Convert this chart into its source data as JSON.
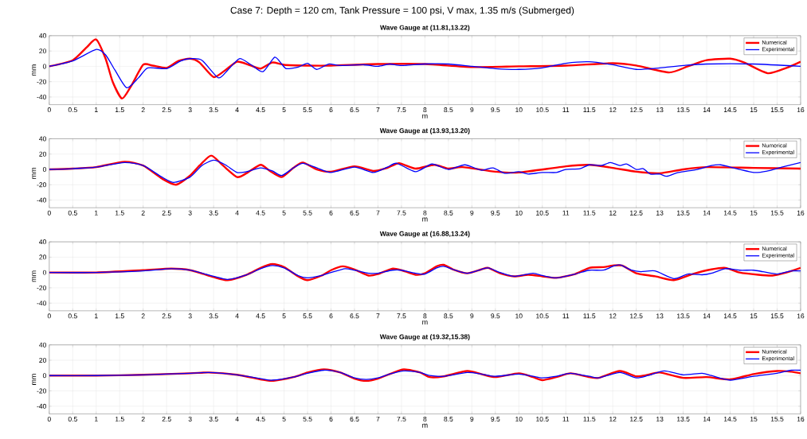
{
  "chart_data": [
    {
      "type": "line",
      "title": "Wave Gauge at (11.81,13.22)",
      "xlabel": "m",
      "ylabel": "mm",
      "annotations": [
        "Case 7: Depth = 120 cm, Tank Pressure = 100 psi, V max, 1.35 m/s (Submerged)"
      ],
      "xlim": [
        0,
        16
      ],
      "ylim": [
        -50,
        40
      ],
      "xticks": [
        0,
        0.5,
        1,
        1.5,
        2,
        2.5,
        3,
        3.5,
        4,
        4.5,
        5,
        5.5,
        6,
        6.5,
        7,
        7.5,
        8,
        8.5,
        9,
        9.5,
        10,
        10.5,
        11,
        11.5,
        12,
        12.5,
        13,
        13.5,
        14,
        14.5,
        15,
        15.5,
        16
      ],
      "yticks": [
        -40,
        -20,
        0,
        20,
        40
      ],
      "grid": true,
      "legend": "top right",
      "line_style": "solid",
      "series": [
        {
          "name": "Numerical",
          "color": "#ff0000",
          "x": [
            0,
            0.5,
            0.8,
            1.0,
            1.2,
            1.35,
            1.55,
            1.75,
            2.0,
            2.2,
            2.5,
            2.75,
            3.0,
            3.2,
            3.5,
            3.75,
            4.0,
            4.25,
            4.5,
            4.75,
            5.0,
            5.5,
            6,
            7,
            8,
            9,
            10,
            11,
            12,
            12.5,
            13.2,
            13.6,
            14,
            14.5,
            14.8,
            15.3,
            15.7,
            16
          ],
          "values": [
            0,
            8,
            25,
            35,
            10,
            -20,
            -42,
            -25,
            2,
            1,
            -2,
            7,
            10,
            5,
            -14,
            -5,
            6,
            2,
            -3,
            5,
            2,
            1,
            1,
            3,
            3,
            -1,
            0,
            1,
            4,
            1,
            -8,
            0,
            8,
            10,
            5,
            -9,
            -2,
            6
          ]
        },
        {
          "name": "Experimental",
          "color": "#0000ff",
          "x": [
            0,
            0.5,
            1.0,
            1.2,
            1.4,
            1.65,
            1.9,
            2.1,
            2.5,
            2.8,
            3.0,
            3.25,
            3.6,
            3.8,
            4.05,
            4.3,
            4.55,
            4.8,
            4.95,
            5.05,
            5.3,
            5.5,
            5.7,
            5.95,
            6.2,
            6.7,
            7,
            7.25,
            7.5,
            8,
            8.5,
            9,
            9.5,
            10,
            10.5,
            11,
            11.5,
            12,
            12.5,
            13,
            13.5,
            14,
            15,
            16
          ],
          "values": [
            0,
            7,
            22,
            15,
            -5,
            -28,
            -15,
            -2,
            -3,
            7,
            10,
            8,
            -15,
            -5,
            10,
            2,
            -7,
            12,
            3,
            -3,
            -1,
            4,
            -4,
            3,
            1,
            2,
            0,
            3,
            1,
            3,
            3,
            0,
            -3,
            -4,
            -2,
            4,
            6,
            2,
            -4,
            -2,
            1,
            3,
            3,
            0
          ]
        }
      ]
    },
    {
      "type": "line",
      "title": "Wave Gauge at (13.93,13.20)",
      "xlabel": "m",
      "ylabel": "mm",
      "xlim": [
        0,
        16
      ],
      "ylim": [
        -50,
        40
      ],
      "xticks": [
        0,
        0.5,
        1,
        1.5,
        2,
        2.5,
        3,
        3.5,
        4,
        4.5,
        5,
        5.5,
        6,
        6.5,
        7,
        7.5,
        8,
        8.5,
        9,
        9.5,
        10,
        10.5,
        11,
        11.5,
        12,
        12.5,
        13,
        13.5,
        14,
        14.5,
        15,
        15.5,
        16
      ],
      "yticks": [
        -40,
        -20,
        0,
        20,
        40
      ],
      "grid": true,
      "legend": "top right",
      "line_style": "solid",
      "series": [
        {
          "name": "Numerical",
          "color": "#ff0000",
          "x": [
            0,
            0.5,
            1,
            1.6,
            2.0,
            2.4,
            2.7,
            3.0,
            3.2,
            3.45,
            3.7,
            4.0,
            4.2,
            4.5,
            4.7,
            4.95,
            5.2,
            5.4,
            5.7,
            6.0,
            6.5,
            6.9,
            7.2,
            7.45,
            7.8,
            8.2,
            8.5,
            8.8,
            9.5,
            10,
            11,
            11.5,
            12,
            12.5,
            13,
            13.5,
            14,
            15,
            16
          ],
          "values": [
            0,
            1,
            3,
            10,
            5,
            -12,
            -20,
            -8,
            5,
            18,
            5,
            -10,
            -5,
            6,
            -2,
            -10,
            2,
            9,
            0,
            -3,
            4,
            -2,
            2,
            8,
            1,
            6,
            1,
            3,
            -3,
            -4,
            4,
            6,
            2,
            -3,
            -5,
            0,
            3,
            2,
            1
          ]
        },
        {
          "name": "Experimental",
          "color": "#0000ff",
          "x": [
            0,
            0.5,
            1,
            1.6,
            2.0,
            2.4,
            2.65,
            3.0,
            3.25,
            3.5,
            3.75,
            4.0,
            4.2,
            4.5,
            4.75,
            4.95,
            5.2,
            5.4,
            5.7,
            6.0,
            6.5,
            6.9,
            7.2,
            7.4,
            7.8,
            8.15,
            8.5,
            8.85,
            9.2,
            9.45,
            9.7,
            10,
            10.2,
            10.5,
            10.8,
            11,
            11.3,
            11.5,
            11.75,
            11.95,
            12.15,
            12.3,
            12.5,
            12.65,
            12.8,
            13.0,
            13.15,
            13.4,
            13.8,
            14.1,
            14.3,
            14.5,
            15.0,
            15.3,
            15.6,
            16
          ],
          "values": [
            0,
            1,
            3,
            9,
            5,
            -10,
            -17,
            -10,
            5,
            12,
            6,
            -4,
            -3,
            2,
            -2,
            -8,
            2,
            8,
            2,
            -4,
            3,
            -4,
            3,
            8,
            -3,
            7,
            0,
            6,
            -1,
            2,
            -5,
            -3,
            -6,
            -4,
            -4,
            0,
            1,
            6,
            5,
            9,
            5,
            7,
            0,
            1,
            -6,
            -6,
            -9,
            -4,
            0,
            5,
            6,
            3,
            -4,
            -2,
            3,
            9
          ]
        }
      ]
    },
    {
      "type": "line",
      "title": "Wave Gauge at (16.88,13.24)",
      "xlabel": "m",
      "ylabel": "mm",
      "xlim": [
        0,
        16
      ],
      "ylim": [
        -50,
        40
      ],
      "xticks": [
        0,
        0.5,
        1,
        1.5,
        2,
        2.5,
        3,
        3.5,
        4,
        4.5,
        5,
        5.5,
        6,
        6.5,
        7,
        7.5,
        8,
        8.5,
        9,
        9.5,
        10,
        10.5,
        11,
        11.5,
        12,
        12.5,
        13,
        13.5,
        14,
        14.5,
        15,
        15.5,
        16
      ],
      "yticks": [
        -40,
        -20,
        0,
        20,
        40
      ],
      "grid": true,
      "legend": "top right",
      "line_style": "solid",
      "series": [
        {
          "name": "Numerical",
          "color": "#ff0000",
          "x": [
            0,
            1,
            2,
            2.6,
            3.0,
            3.5,
            3.8,
            4.2,
            4.5,
            4.75,
            5.0,
            5.3,
            5.5,
            5.8,
            6.0,
            6.25,
            6.5,
            6.8,
            7.0,
            7.3,
            7.5,
            7.8,
            8.0,
            8.25,
            8.4,
            8.6,
            8.9,
            9.2,
            9.35,
            9.6,
            9.9,
            10.2,
            10.5,
            10.8,
            11.2,
            11.5,
            11.8,
            12.0,
            12.2,
            12.5,
            12.9,
            13.3,
            13.7,
            14.1,
            14.4,
            14.7,
            15.1,
            15.4,
            15.7,
            16
          ],
          "values": [
            0,
            0,
            3,
            5,
            3,
            -6,
            -10,
            -3,
            6,
            11,
            7,
            -5,
            -10,
            -4,
            3,
            8,
            4,
            -4,
            -2,
            5,
            3,
            -3,
            -1,
            8,
            10,
            4,
            -1,
            4,
            6,
            -1,
            -5,
            -3,
            -5,
            -7,
            -2,
            6,
            7,
            9,
            9,
            -1,
            -5,
            -10,
            -2,
            4,
            6,
            0,
            -3,
            -4,
            0,
            6
          ]
        },
        {
          "name": "Experimental",
          "color": "#0000ff",
          "x": [
            0,
            1,
            2,
            2.6,
            3.0,
            3.5,
            3.8,
            4.2,
            4.5,
            4.75,
            5.0,
            5.3,
            5.5,
            5.8,
            6.0,
            6.3,
            6.5,
            6.8,
            7.0,
            7.3,
            7.5,
            7.8,
            8.0,
            8.25,
            8.4,
            8.6,
            8.9,
            9.2,
            9.35,
            9.6,
            9.9,
            10.3,
            10.5,
            10.8,
            11.2,
            11.5,
            11.8,
            12.0,
            12.15,
            12.4,
            12.6,
            12.9,
            13.3,
            13.6,
            13.9,
            14.1,
            14.4,
            14.7,
            15.0,
            15.2,
            15.5,
            15.8,
            16
          ],
          "values": [
            0,
            0,
            2,
            5,
            3,
            -5,
            -9,
            -3,
            5,
            9,
            6,
            -4,
            -7,
            -4,
            0,
            5,
            3,
            -1,
            -1,
            3,
            3,
            -1,
            -2,
            6,
            8,
            4,
            -1,
            4,
            6,
            0,
            -5,
            -1,
            -4,
            -7,
            -2,
            3,
            3,
            8,
            10,
            3,
            1,
            2,
            -8,
            -2,
            -3,
            -1,
            5,
            3,
            3,
            1,
            -2,
            2,
            2
          ]
        }
      ]
    },
    {
      "type": "line",
      "title": "Wave Gauge at (19.32,15.38)",
      "xlabel": "m",
      "ylabel": "mm",
      "xlim": [
        0,
        16
      ],
      "ylim": [
        -50,
        40
      ],
      "xticks": [
        0,
        0.5,
        1,
        1.5,
        2,
        2.5,
        3,
        3.5,
        4,
        4.5,
        5,
        5.5,
        6,
        6.5,
        7,
        7.5,
        8,
        8.5,
        9,
        9.5,
        10,
        10.5,
        11,
        11.5,
        12,
        12.5,
        13,
        13.5,
        14,
        14.5,
        15,
        15.5,
        16
      ],
      "yticks": [
        -40,
        -20,
        0,
        20,
        40
      ],
      "grid": true,
      "legend": "top right",
      "line_style": "solid",
      "series": [
        {
          "name": "Numerical",
          "color": "#ff0000",
          "x": [
            0,
            1,
            2,
            3,
            3.4,
            4,
            4.5,
            4.75,
            5.2,
            5.5,
            5.85,
            6.2,
            6.5,
            6.75,
            7.0,
            7.25,
            7.55,
            7.9,
            8.1,
            8.4,
            8.9,
            9.2,
            9.5,
            10.0,
            10.3,
            10.5,
            10.8,
            11.1,
            11.5,
            11.7,
            12.15,
            12.5,
            12.75,
            13.0,
            13.5,
            14.0,
            14.5,
            15.0,
            15.5,
            15.8,
            16
          ],
          "values": [
            0,
            0,
            1,
            3,
            4,
            1,
            -5,
            -7,
            -2,
            4,
            8,
            4,
            -4,
            -7,
            -4,
            2,
            8,
            4,
            -2,
            -1,
            6,
            2,
            -2,
            3,
            -2,
            -6,
            -2,
            3,
            -2,
            -3,
            6,
            -1,
            1,
            4,
            -3,
            -2,
            -5,
            2,
            6,
            5,
            3
          ]
        },
        {
          "name": "Experimental",
          "color": "#0000ff",
          "x": [
            0,
            1,
            2,
            3,
            3.4,
            4,
            4.5,
            4.75,
            5.2,
            5.5,
            5.85,
            6.2,
            6.5,
            6.75,
            7.0,
            7.25,
            7.55,
            7.9,
            8.1,
            8.4,
            8.9,
            9.2,
            9.5,
            10.0,
            10.3,
            10.5,
            10.8,
            11.1,
            11.5,
            11.7,
            12.15,
            12.5,
            12.75,
            13.1,
            13.5,
            13.9,
            14.1,
            14.5,
            15.0,
            15.5,
            15.8,
            16
          ],
          "values": [
            0,
            0,
            1,
            3,
            4,
            1,
            -4,
            -6,
            -2,
            3,
            7,
            4,
            -3,
            -5,
            -3,
            2,
            6,
            4,
            0,
            -1,
            4,
            2,
            -1,
            2,
            -1,
            -3,
            -1,
            3,
            -1,
            -3,
            4,
            -3,
            0,
            6,
            1,
            3,
            0,
            -6,
            -1,
            3,
            7,
            7
          ]
        }
      ]
    }
  ]
}
